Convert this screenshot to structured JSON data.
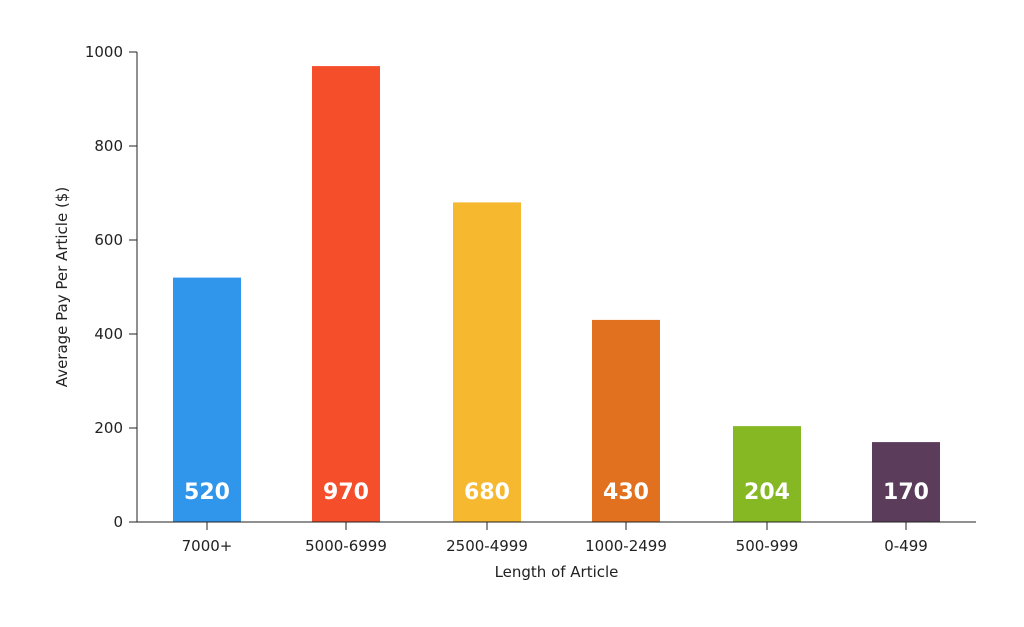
{
  "chart_data": {
    "type": "bar",
    "categories": [
      "7000+",
      "5000-6999",
      "2500-4999",
      "1000-2499",
      "500-999",
      "0-499"
    ],
    "values": [
      520,
      970,
      680,
      430,
      204,
      170
    ],
    "data_labels": [
      "520",
      "970",
      "680",
      "430",
      "204",
      "170"
    ],
    "colors": [
      "#2f96ec",
      "#f44e2b",
      "#f5b82e",
      "#e1711f",
      "#86b824",
      "#5b3c5a"
    ],
    "xlabel": "Length of Article",
    "ylabel": "Average Pay Per Article ($)",
    "ylim": [
      0,
      1000
    ],
    "yticks": [
      0,
      200,
      400,
      600,
      800,
      1000
    ],
    "ytick_labels": [
      "0",
      "200",
      "400",
      "600",
      "800",
      "1000"
    ],
    "grid": false,
    "legend": "none"
  }
}
